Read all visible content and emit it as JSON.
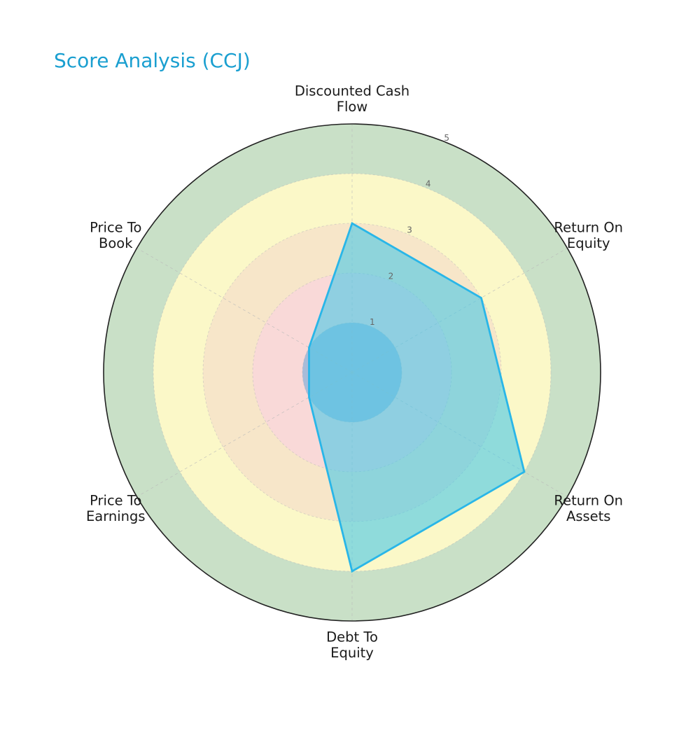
{
  "title": "Score Analysis (CCJ)",
  "chart_data": {
    "type": "radar",
    "title": "Score Analysis (CCJ)",
    "axes": [
      [
        "Discounted Cash",
        "Flow"
      ],
      [
        "Return On",
        "Equity"
      ],
      [
        "Return On",
        "Assets"
      ],
      [
        "Debt To",
        "Equity"
      ],
      [
        "Price To",
        "Earnings"
      ],
      [
        "Price To",
        "Book"
      ]
    ],
    "series": [
      {
        "values": [
          3,
          3,
          4,
          4,
          1,
          1
        ],
        "color": "#29b6e8",
        "fill": "#48c8e8"
      }
    ],
    "rlim": [
      0,
      5
    ],
    "radial_ticks": [
      "1",
      "2",
      "3",
      "4",
      "5"
    ],
    "bands": [
      {
        "from": 0,
        "to": 1,
        "color": "#a7bcd9"
      },
      {
        "from": 1,
        "to": 2,
        "color": "#f9d9d8"
      },
      {
        "from": 2,
        "to": 3,
        "color": "#f7e6c9"
      },
      {
        "from": 3,
        "to": 4,
        "color": "#fbf8c8"
      },
      {
        "from": 4,
        "to": 5,
        "color": "#c9e0c7"
      }
    ],
    "grid": true
  }
}
